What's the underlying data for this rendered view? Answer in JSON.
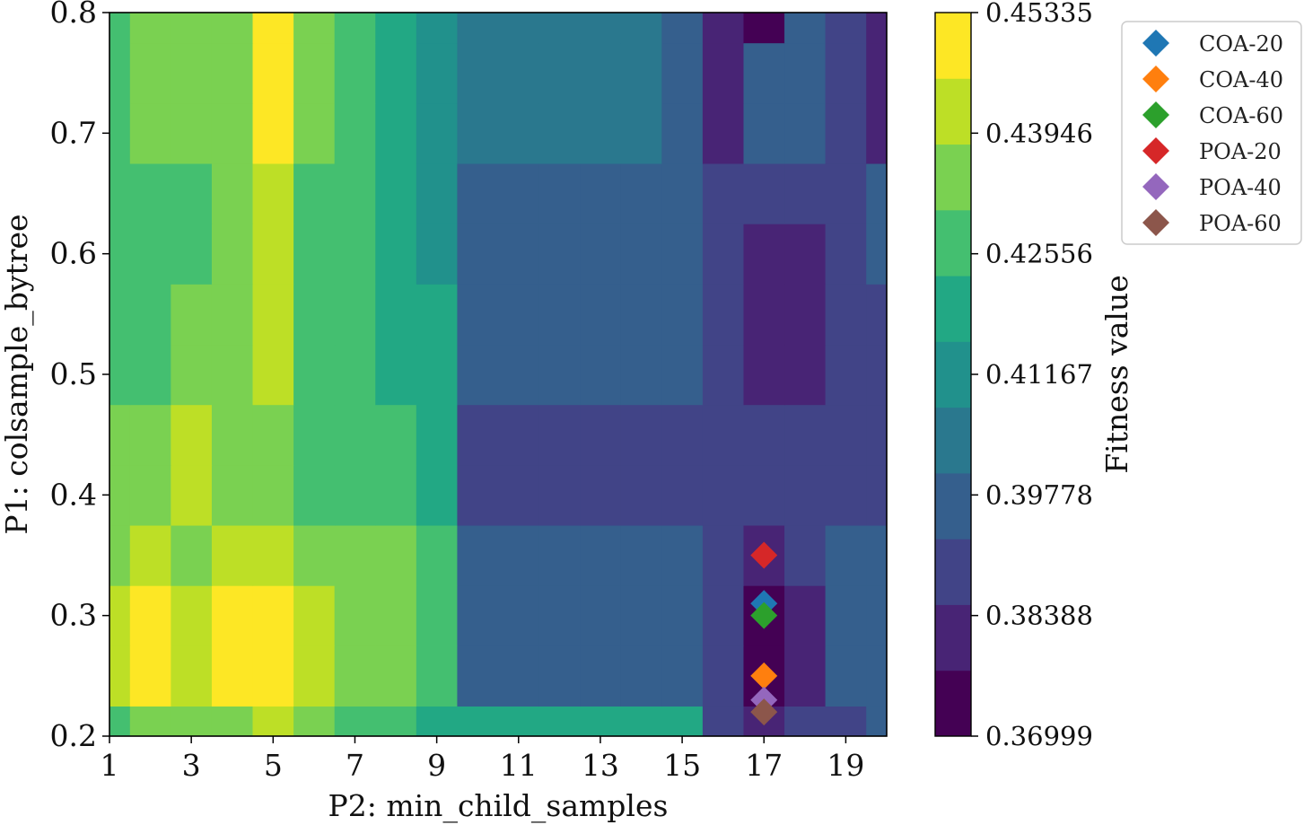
{
  "chart_data": {
    "type": "contour",
    "xlabel": "P2: min_child_samples",
    "ylabel": "P1: colsample_bytree",
    "xlim": [
      1,
      20
    ],
    "ylim": [
      0.2,
      0.8
    ],
    "x_ticks": [
      1,
      3,
      5,
      7,
      9,
      11,
      13,
      15,
      17,
      19
    ],
    "y_ticks": [
      0.2,
      0.3,
      0.4,
      0.5,
      0.6,
      0.7,
      0.8
    ],
    "y_tick_labels": [
      "0.2",
      "0.3",
      "0.4",
      "0.5",
      "0.6",
      "0.7",
      "0.8"
    ],
    "colorbar": {
      "label": "Fitness value",
      "min": 0.36999,
      "max": 0.45335,
      "levels": 12,
      "tick_labels": [
        "0.36999",
        "0.38388",
        "0.39778",
        "0.41167",
        "0.42556",
        "0.43946",
        "0.45335"
      ],
      "colors": [
        "#440154",
        "#482475",
        "#414487",
        "#355f8d",
        "#2a788e",
        "#21918c",
        "#22a884",
        "#44bf70",
        "#7ad151",
        "#bddf26",
        "#fde725"
      ]
    },
    "contour_field": {
      "note_levels": "values are fitness per grid cell (rows: colsample_bytree, cols: min_child_samples)",
      "x": [
        1,
        2,
        3,
        4,
        5,
        6,
        7,
        8,
        9,
        10,
        11,
        12,
        13,
        14,
        15,
        16,
        17,
        18,
        19,
        20
      ],
      "y": [
        0.2,
        0.25,
        0.3,
        0.35,
        0.4,
        0.45,
        0.5,
        0.55,
        0.6,
        0.65,
        0.7,
        0.75,
        0.8
      ],
      "z": [
        [
          0.43,
          0.437,
          0.432,
          0.438,
          0.439,
          0.436,
          0.43,
          0.429,
          0.421,
          0.418,
          0.418,
          0.418,
          0.418,
          0.419,
          0.418,
          0.392,
          0.379,
          0.388,
          0.392,
          0.395
        ],
        [
          0.44,
          0.447,
          0.439,
          0.446,
          0.446,
          0.441,
          0.434,
          0.436,
          0.425,
          0.4,
          0.396,
          0.397,
          0.397,
          0.397,
          0.397,
          0.388,
          0.372,
          0.385,
          0.394,
          0.396
        ],
        [
          0.44,
          0.448,
          0.439,
          0.446,
          0.446,
          0.441,
          0.434,
          0.436,
          0.425,
          0.4,
          0.396,
          0.397,
          0.397,
          0.397,
          0.397,
          0.388,
          0.372,
          0.385,
          0.394,
          0.396
        ],
        [
          0.436,
          0.44,
          0.435,
          0.441,
          0.441,
          0.437,
          0.431,
          0.432,
          0.424,
          0.399,
          0.396,
          0.397,
          0.397,
          0.397,
          0.397,
          0.389,
          0.38,
          0.387,
          0.393,
          0.396
        ],
        [
          0.432,
          0.432,
          0.441,
          0.432,
          0.432,
          0.43,
          0.425,
          0.424,
          0.418,
          0.39,
          0.388,
          0.388,
          0.388,
          0.388,
          0.388,
          0.386,
          0.386,
          0.388,
          0.39,
          0.392
        ],
        [
          0.431,
          0.432,
          0.441,
          0.432,
          0.432,
          0.43,
          0.425,
          0.424,
          0.418,
          0.39,
          0.388,
          0.388,
          0.388,
          0.388,
          0.388,
          0.386,
          0.386,
          0.388,
          0.39,
          0.392
        ],
        [
          0.427,
          0.43,
          0.431,
          0.433,
          0.445,
          0.428,
          0.424,
          0.42,
          0.416,
          0.396,
          0.394,
          0.394,
          0.394,
          0.394,
          0.394,
          0.39,
          0.381,
          0.381,
          0.387,
          0.392
        ],
        [
          0.427,
          0.43,
          0.431,
          0.433,
          0.445,
          0.428,
          0.424,
          0.42,
          0.416,
          0.396,
          0.394,
          0.394,
          0.394,
          0.394,
          0.394,
          0.39,
          0.381,
          0.381,
          0.387,
          0.392
        ],
        [
          0.426,
          0.429,
          0.43,
          0.432,
          0.444,
          0.427,
          0.424,
          0.419,
          0.415,
          0.397,
          0.395,
          0.395,
          0.395,
          0.395,
          0.395,
          0.39,
          0.382,
          0.382,
          0.388,
          0.393
        ],
        [
          0.426,
          0.429,
          0.43,
          0.432,
          0.44,
          0.427,
          0.424,
          0.419,
          0.415,
          0.4,
          0.398,
          0.398,
          0.398,
          0.398,
          0.397,
          0.392,
          0.391,
          0.391,
          0.392,
          0.394
        ],
        [
          0.429,
          0.432,
          0.433,
          0.436,
          0.446,
          0.432,
          0.427,
          0.421,
          0.413,
          0.405,
          0.403,
          0.403,
          0.403,
          0.403,
          0.4,
          0.384,
          0.395,
          0.393,
          0.391,
          0.383
        ],
        [
          0.429,
          0.432,
          0.433,
          0.436,
          0.446,
          0.432,
          0.427,
          0.421,
          0.413,
          0.405,
          0.403,
          0.403,
          0.403,
          0.403,
          0.4,
          0.384,
          0.395,
          0.393,
          0.391,
          0.383
        ],
        [
          0.429,
          0.432,
          0.433,
          0.436,
          0.446,
          0.432,
          0.427,
          0.421,
          0.413,
          0.405,
          0.403,
          0.403,
          0.403,
          0.403,
          0.4,
          0.384,
          0.372,
          0.393,
          0.391,
          0.383
        ]
      ]
    },
    "series": [
      {
        "name": "COA-20",
        "color": "#1f77b4",
        "marker": "diamond",
        "x": 17,
        "y": 0.31
      },
      {
        "name": "COA-40",
        "color": "#ff7f0e",
        "marker": "diamond",
        "x": 17,
        "y": 0.25
      },
      {
        "name": "COA-60",
        "color": "#2ca02c",
        "marker": "diamond",
        "x": 17,
        "y": 0.3
      },
      {
        "name": "POA-20",
        "color": "#d62728",
        "marker": "diamond",
        "x": 17,
        "y": 0.35
      },
      {
        "name": "POA-40",
        "color": "#9467bd",
        "marker": "diamond",
        "x": 17,
        "y": 0.23
      },
      {
        "name": "POA-60",
        "color": "#8c564b",
        "marker": "diamond",
        "x": 17,
        "y": 0.22
      }
    ],
    "legend_position": "outside-top-right",
    "grid": false
  }
}
